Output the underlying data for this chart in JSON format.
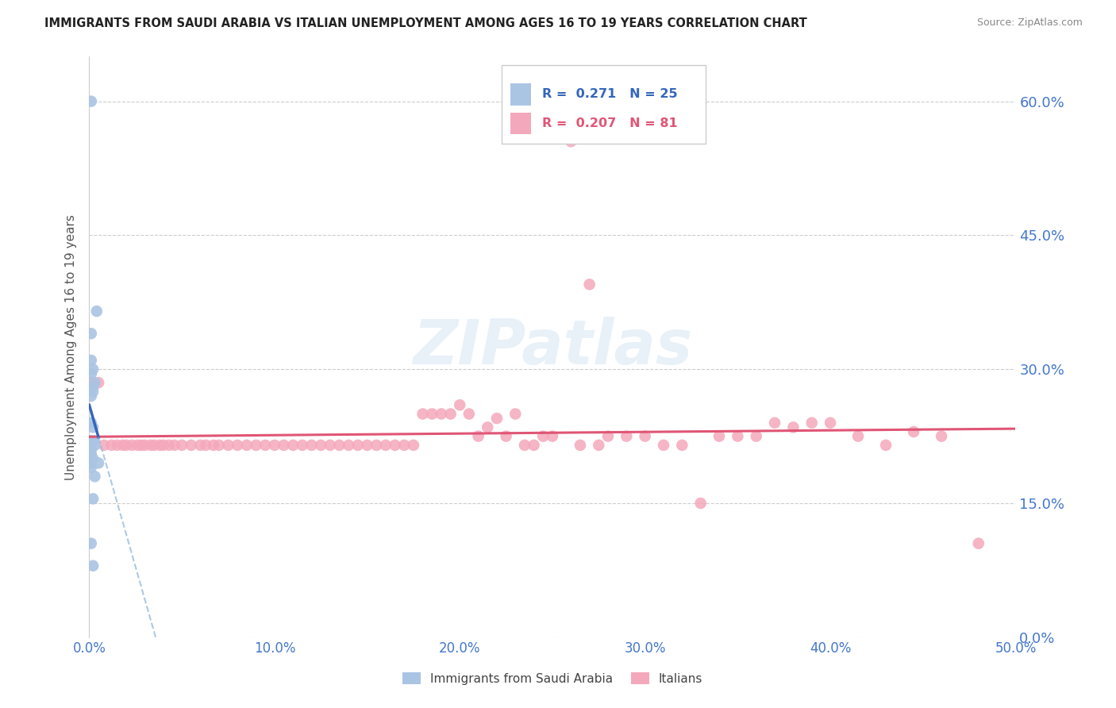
{
  "title": "IMMIGRANTS FROM SAUDI ARABIA VS ITALIAN UNEMPLOYMENT AMONG AGES 16 TO 19 YEARS CORRELATION CHART",
  "source": "Source: ZipAtlas.com",
  "ylabel": "Unemployment Among Ages 16 to 19 years",
  "legend_label1": "Immigrants from Saudi Arabia",
  "legend_label2": "Italians",
  "xlim": [
    0.0,
    0.5
  ],
  "ylim": [
    0.0,
    0.65
  ],
  "yticks": [
    0.0,
    0.15,
    0.3,
    0.45,
    0.6
  ],
  "xticks": [
    0.0,
    0.1,
    0.2,
    0.3,
    0.4,
    0.5
  ],
  "color_blue": "#aac4e4",
  "color_pink": "#f4a8bb",
  "color_blue_line": "#3366bb",
  "color_blue_dash": "#99bbdd",
  "color_pink_line": "#e05575",
  "color_axis_labels": "#4477cc",
  "background": "#ffffff",
  "saudi_x": [
    0.001,
    0.004,
    0.001,
    0.001,
    0.002,
    0.001,
    0.003,
    0.002,
    0.002,
    0.001,
    0.001,
    0.002,
    0.001,
    0.002,
    0.003,
    0.001,
    0.001,
    0.002,
    0.001,
    0.005,
    0.001,
    0.003,
    0.002,
    0.001,
    0.002
  ],
  "saudi_y": [
    0.6,
    0.365,
    0.34,
    0.31,
    0.3,
    0.295,
    0.285,
    0.28,
    0.275,
    0.27,
    0.24,
    0.235,
    0.22,
    0.22,
    0.215,
    0.21,
    0.205,
    0.2,
    0.195,
    0.195,
    0.19,
    0.18,
    0.155,
    0.105,
    0.08
  ],
  "italian_x": [
    0.001,
    0.005,
    0.008,
    0.012,
    0.015,
    0.018,
    0.02,
    0.023,
    0.026,
    0.028,
    0.03,
    0.033,
    0.035,
    0.038,
    0.04,
    0.043,
    0.046,
    0.05,
    0.055,
    0.06,
    0.063,
    0.067,
    0.07,
    0.075,
    0.08,
    0.085,
    0.09,
    0.095,
    0.1,
    0.105,
    0.11,
    0.115,
    0.12,
    0.125,
    0.13,
    0.135,
    0.14,
    0.145,
    0.15,
    0.155,
    0.16,
    0.165,
    0.17,
    0.175,
    0.18,
    0.185,
    0.19,
    0.195,
    0.2,
    0.205,
    0.21,
    0.215,
    0.22,
    0.225,
    0.23,
    0.235,
    0.24,
    0.245,
    0.25,
    0.26,
    0.265,
    0.27,
    0.275,
    0.28,
    0.29,
    0.3,
    0.31,
    0.32,
    0.33,
    0.34,
    0.35,
    0.36,
    0.37,
    0.38,
    0.39,
    0.4,
    0.415,
    0.43,
    0.445,
    0.46,
    0.48
  ],
  "italian_y": [
    0.285,
    0.285,
    0.215,
    0.215,
    0.215,
    0.215,
    0.215,
    0.215,
    0.215,
    0.215,
    0.215,
    0.215,
    0.215,
    0.215,
    0.215,
    0.215,
    0.215,
    0.215,
    0.215,
    0.215,
    0.215,
    0.215,
    0.215,
    0.215,
    0.215,
    0.215,
    0.215,
    0.215,
    0.215,
    0.215,
    0.215,
    0.215,
    0.215,
    0.215,
    0.215,
    0.215,
    0.215,
    0.215,
    0.215,
    0.215,
    0.215,
    0.215,
    0.215,
    0.215,
    0.25,
    0.25,
    0.25,
    0.25,
    0.26,
    0.25,
    0.225,
    0.235,
    0.245,
    0.225,
    0.25,
    0.215,
    0.215,
    0.225,
    0.225,
    0.555,
    0.215,
    0.395,
    0.215,
    0.225,
    0.225,
    0.225,
    0.215,
    0.215,
    0.15,
    0.225,
    0.225,
    0.225,
    0.24,
    0.235,
    0.24,
    0.24,
    0.225,
    0.215,
    0.23,
    0.225,
    0.105
  ]
}
